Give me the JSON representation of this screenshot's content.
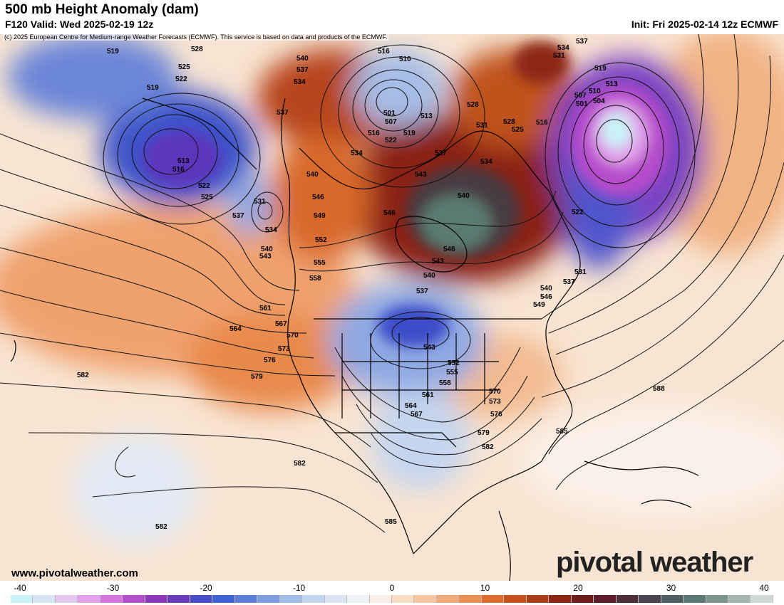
{
  "header": {
    "title": "500 mb Height Anomaly (dam)",
    "valid": "F120 Valid: Wed 2025-02-19 12z",
    "init": "Init: Fri 2025-02-14 12z ECMWF"
  },
  "copyright": "(c) 2025 European Centre for Medium-range Weather Forecasts (ECMWF). This service is based on data and products of the ECMWF.",
  "footer": {
    "site": "www.pivotalweather.com",
    "logo": "pivotal weather"
  },
  "colorbar": {
    "ticks": [
      "-40",
      "-30",
      "-20",
      "-10",
      "0",
      "10",
      "20",
      "30",
      "40"
    ],
    "colors": [
      "#c8f3f7",
      "#d9e6f4",
      "#e3c8ef",
      "#e3a2ea",
      "#d676dd",
      "#b34fc8",
      "#8c39bb",
      "#6a3cbd",
      "#4a4bc6",
      "#4062d2",
      "#5b7fd9",
      "#7e9edf",
      "#a2bde8",
      "#c4d5ef",
      "#dbe5f3",
      "#eef2f7",
      "#fbeee4",
      "#f9dcc4",
      "#f6c6a0",
      "#f2aa78",
      "#ec8e52",
      "#de6e2f",
      "#c7521e",
      "#aa3c18",
      "#8c2514",
      "#6f1c1c",
      "#5a1d2c",
      "#4c2d3a",
      "#4a4350",
      "#4d5d62",
      "#5b7975",
      "#7a958d",
      "#a4b6ae",
      "#d0dad4"
    ]
  },
  "contour_labels": [
    {
      "text": "519"
    },
    {
      "text": "528"
    },
    {
      "text": "525"
    },
    {
      "text": "522"
    },
    {
      "text": "519"
    },
    {
      "text": "513"
    },
    {
      "text": "516"
    },
    {
      "text": "522"
    },
    {
      "text": "525"
    },
    {
      "text": "531"
    },
    {
      "text": "537"
    },
    {
      "text": "534"
    },
    {
      "text": "540"
    },
    {
      "text": "543"
    },
    {
      "text": "540"
    },
    {
      "text": "537"
    },
    {
      "text": "534"
    },
    {
      "text": "537"
    },
    {
      "text": "540"
    },
    {
      "text": "546"
    },
    {
      "text": "549"
    },
    {
      "text": "552"
    },
    {
      "text": "555"
    },
    {
      "text": "558"
    },
    {
      "text": "516"
    },
    {
      "text": "510"
    },
    {
      "text": "501"
    },
    {
      "text": "507"
    },
    {
      "text": "516"
    },
    {
      "text": "522"
    },
    {
      "text": "519"
    },
    {
      "text": "513"
    },
    {
      "text": "534"
    },
    {
      "text": "528"
    },
    {
      "text": "531"
    },
    {
      "text": "528"
    },
    {
      "text": "525"
    },
    {
      "text": "516"
    },
    {
      "text": "537"
    },
    {
      "text": "534"
    },
    {
      "text": "531"
    },
    {
      "text": "537"
    },
    {
      "text": "543"
    },
    {
      "text": "534"
    },
    {
      "text": "540"
    },
    {
      "text": "546"
    },
    {
      "text": "546"
    },
    {
      "text": "543"
    },
    {
      "text": "540"
    },
    {
      "text": "519"
    },
    {
      "text": "513"
    },
    {
      "text": "510"
    },
    {
      "text": "507"
    },
    {
      "text": "504"
    },
    {
      "text": "501"
    },
    {
      "text": "522"
    },
    {
      "text": "531"
    },
    {
      "text": "537"
    },
    {
      "text": "537"
    },
    {
      "text": "540"
    },
    {
      "text": "546"
    },
    {
      "text": "549"
    },
    {
      "text": "543"
    },
    {
      "text": "552"
    },
    {
      "text": "555"
    },
    {
      "text": "558"
    },
    {
      "text": "561"
    },
    {
      "text": "564"
    },
    {
      "text": "567"
    },
    {
      "text": "570"
    },
    {
      "text": "573"
    },
    {
      "text": "576"
    },
    {
      "text": "579"
    },
    {
      "text": "582"
    },
    {
      "text": "585"
    },
    {
      "text": "588"
    },
    {
      "text": "561"
    },
    {
      "text": "564"
    },
    {
      "text": "567"
    },
    {
      "text": "570"
    },
    {
      "text": "573"
    },
    {
      "text": "576"
    },
    {
      "text": "579"
    },
    {
      "text": "582"
    },
    {
      "text": "582"
    },
    {
      "text": "582"
    },
    {
      "text": "585"
    }
  ]
}
